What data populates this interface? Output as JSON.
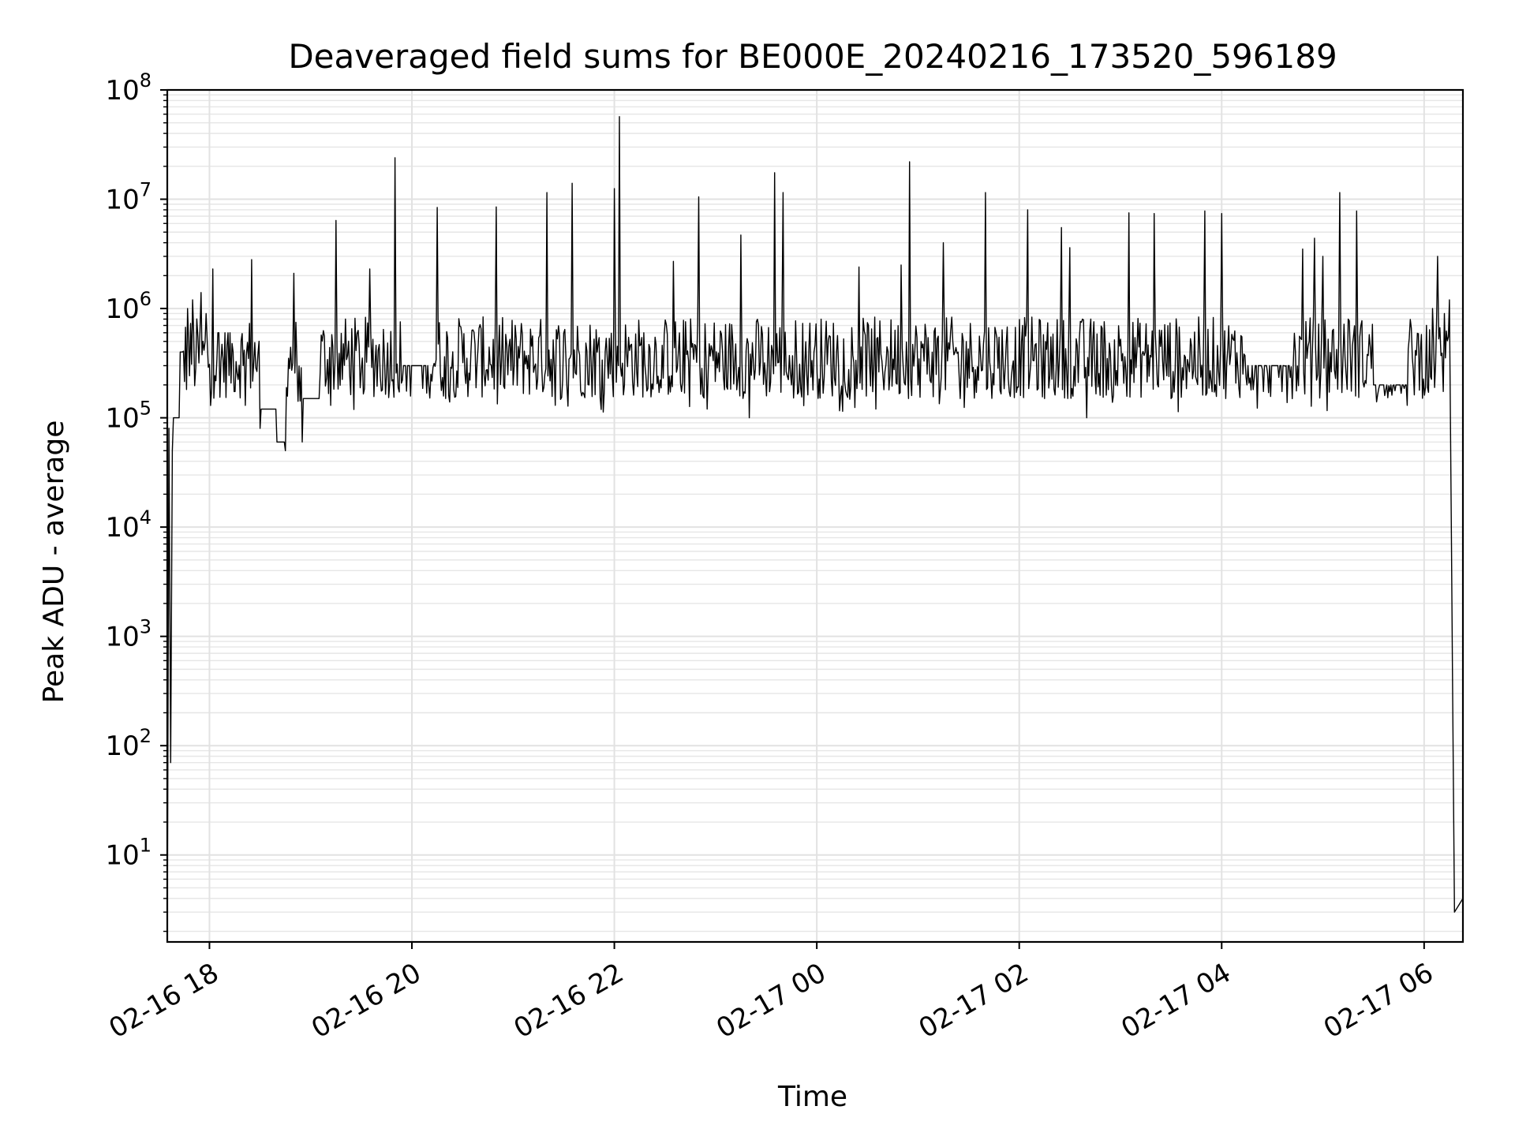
{
  "chart_data": {
    "type": "line",
    "title": "Deaveraged field sums for BE000E_20240216_173520_596189",
    "xlabel": "Time",
    "ylabel": "Peak ADU - average",
    "yscale": "log",
    "ylim": [
      1.6,
      100000000
    ],
    "xlim": [
      "2024-02-16 17:35",
      "2024-02-17 06:23"
    ],
    "grid": "major and minor",
    "x_ticks": [
      {
        "t": "2024-02-16 18:00",
        "label": "02-16 18"
      },
      {
        "t": "2024-02-16 20:00",
        "label": "02-16 20"
      },
      {
        "t": "2024-02-16 22:00",
        "label": "02-16 22"
      },
      {
        "t": "2024-02-17 00:00",
        "label": "02-17 00"
      },
      {
        "t": "2024-02-17 02:00",
        "label": "02-17 02"
      },
      {
        "t": "2024-02-17 04:00",
        "label": "02-17 04"
      },
      {
        "t": "2024-02-17 06:00",
        "label": "02-17 06"
      }
    ],
    "y_ticks": [
      {
        "value": 10,
        "base": "10",
        "exp": "1"
      },
      {
        "value": 100,
        "base": "10",
        "exp": "2"
      },
      {
        "value": 1000,
        "base": "10",
        "exp": "3"
      },
      {
        "value": 10000,
        "base": "10",
        "exp": "4"
      },
      {
        "value": 100000,
        "base": "10",
        "exp": "5"
      },
      {
        "value": 1000000,
        "base": "10",
        "exp": "6"
      },
      {
        "value": 10000000,
        "base": "10",
        "exp": "7"
      },
      {
        "value": 100000000,
        "base": "10",
        "exp": "8"
      }
    ],
    "series": [
      {
        "color": "#000000",
        "points": [
          [
            "2024-02-16 17:35",
            1.6
          ],
          [
            "2024-02-16 17:36",
            80000
          ],
          [
            "2024-02-16 17:37",
            70
          ],
          [
            "2024-02-16 17:38",
            50000
          ],
          [
            "2024-02-16 17:42",
            100000
          ],
          [
            "2024-02-16 17:44",
            400000
          ],
          [
            "2024-02-16 17:47",
            1000000
          ],
          [
            "2024-02-16 17:50",
            1200000
          ],
          [
            "2024-02-16 17:55",
            1400000
          ],
          [
            "2024-02-16 17:58",
            900000
          ],
          [
            "2024-02-16 18:02",
            2300000
          ],
          [
            "2024-02-16 18:05",
            600000
          ],
          [
            "2024-02-16 18:20",
            300000
          ],
          [
            "2024-02-16 18:25",
            2800000
          ],
          [
            "2024-02-16 18:30",
            80000
          ],
          [
            "2024-02-16 18:35",
            120000
          ],
          [
            "2024-02-16 18:40",
            60000
          ],
          [
            "2024-02-16 18:45",
            50000
          ],
          [
            "2024-02-16 18:50",
            2100000
          ],
          [
            "2024-02-16 18:55",
            60000
          ],
          [
            "2024-02-16 19:05",
            150000
          ],
          [
            "2024-02-16 19:15",
            6400000
          ],
          [
            "2024-02-16 19:25",
            300000
          ],
          [
            "2024-02-16 19:35",
            2300000
          ],
          [
            "2024-02-16 19:45",
            250000
          ],
          [
            "2024-02-16 19:50",
            24000000
          ],
          [
            "2024-02-16 19:55",
            300000
          ],
          [
            "2024-02-16 20:10",
            200000
          ],
          [
            "2024-02-16 20:15",
            8400000
          ],
          [
            "2024-02-16 20:20",
            150000
          ],
          [
            "2024-02-16 20:50",
            8500000
          ],
          [
            "2024-02-16 21:00",
            200000
          ],
          [
            "2024-02-16 21:20",
            11500000
          ],
          [
            "2024-02-16 21:25",
            130000
          ],
          [
            "2024-02-16 21:35",
            14000000
          ],
          [
            "2024-02-16 21:45",
            200000
          ],
          [
            "2024-02-16 22:00",
            12500000
          ],
          [
            "2024-02-16 22:03",
            57000000
          ],
          [
            "2024-02-16 22:06",
            200000
          ],
          [
            "2024-02-16 22:35",
            2700000
          ],
          [
            "2024-02-16 22:50",
            10500000
          ],
          [
            "2024-02-16 22:55",
            120000
          ],
          [
            "2024-02-16 23:15",
            4700000
          ],
          [
            "2024-02-16 23:20",
            100000
          ],
          [
            "2024-02-16 23:35",
            17500000
          ],
          [
            "2024-02-16 23:40",
            11500000
          ],
          [
            "2024-02-16 23:45",
            200000
          ],
          [
            "2024-02-17 00:25",
            2400000
          ],
          [
            "2024-02-17 00:35",
            120000
          ],
          [
            "2024-02-17 00:50",
            2500000
          ],
          [
            "2024-02-17 00:55",
            22000000
          ],
          [
            "2024-02-17 01:00",
            200000
          ],
          [
            "2024-02-17 01:15",
            4000000
          ],
          [
            "2024-02-17 01:25",
            150000
          ],
          [
            "2024-02-17 01:40",
            11500000
          ],
          [
            "2024-02-17 01:45",
            200000
          ],
          [
            "2024-02-17 02:05",
            8000000
          ],
          [
            "2024-02-17 02:15",
            150000
          ],
          [
            "2024-02-17 02:25",
            5500000
          ],
          [
            "2024-02-17 02:30",
            3600000
          ],
          [
            "2024-02-17 02:40",
            100000
          ],
          [
            "2024-02-17 03:05",
            7500000
          ],
          [
            "2024-02-17 03:20",
            7400000
          ],
          [
            "2024-02-17 03:30",
            150000
          ],
          [
            "2024-02-17 03:50",
            7800000
          ],
          [
            "2024-02-17 04:00",
            7400000
          ],
          [
            "2024-02-17 04:15",
            200000
          ],
          [
            "2024-02-17 04:40",
            300000
          ],
          [
            "2024-02-17 04:48",
            3500000
          ],
          [
            "2024-02-17 04:55",
            4400000
          ],
          [
            "2024-02-17 05:00",
            3000000
          ],
          [
            "2024-02-17 05:10",
            11500000
          ],
          [
            "2024-02-17 05:15",
            800000
          ],
          [
            "2024-02-17 05:20",
            7800000
          ],
          [
            "2024-02-17 05:30",
            200000
          ],
          [
            "2024-02-17 05:50",
            130000
          ],
          [
            "2024-02-17 06:05",
            1000000
          ],
          [
            "2024-02-17 06:08",
            3000000
          ],
          [
            "2024-02-17 06:12",
            900000
          ],
          [
            "2024-02-17 06:15",
            1200000
          ],
          [
            "2024-02-17 06:18",
            3
          ],
          [
            "2024-02-17 06:23",
            4
          ]
        ]
      }
    ]
  }
}
